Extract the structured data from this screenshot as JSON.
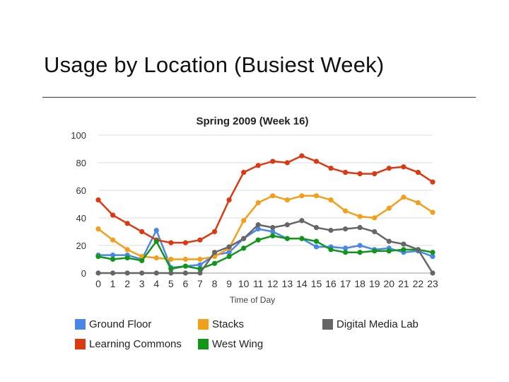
{
  "slide": {
    "title": "Usage by Location (Busiest Week)"
  },
  "chart_data": {
    "type": "line",
    "title": "Spring 2009 (Week 16)",
    "xlabel": "Time of Day",
    "ylabel": "",
    "x": [
      0,
      1,
      2,
      3,
      4,
      5,
      6,
      7,
      8,
      9,
      10,
      11,
      12,
      13,
      14,
      15,
      16,
      17,
      18,
      19,
      20,
      21,
      22,
      23
    ],
    "ylim": [
      0,
      100
    ],
    "yticks": [
      0,
      20,
      40,
      60,
      80,
      100
    ],
    "grid": true,
    "legend_position": "bottom",
    "series": [
      {
        "name": "Ground Floor",
        "color": "#4a86e8",
        "values": [
          13,
          13,
          13,
          10,
          31,
          4,
          5,
          6,
          13,
          15,
          25,
          32,
          30,
          25,
          25,
          19,
          19,
          18,
          20,
          17,
          18,
          15,
          16,
          12
        ]
      },
      {
        "name": "Learning Commons",
        "color": "#dc3912",
        "values": [
          53,
          42,
          36,
          30,
          24,
          22,
          22,
          24,
          30,
          53,
          73,
          78,
          81,
          80,
          85,
          81,
          76,
          73,
          72,
          72,
          76,
          77,
          73,
          66
        ]
      },
      {
        "name": "Stacks",
        "color": "#f49f1a",
        "values": [
          32,
          24,
          17,
          12,
          11,
          10,
          10,
          10,
          12,
          18,
          38,
          51,
          56,
          53,
          56,
          56,
          53,
          45,
          41,
          40,
          47,
          55,
          51,
          44
        ]
      },
      {
        "name": "West Wing",
        "color": "#109618",
        "values": [
          12,
          10,
          11,
          9,
          23,
          3,
          5,
          3,
          7,
          12,
          18,
          24,
          27,
          25,
          25,
          23,
          17,
          15,
          15,
          16,
          16,
          17,
          17,
          15
        ]
      },
      {
        "name": "Digital Media Lab",
        "color": "#666666",
        "values": [
          0,
          0,
          0,
          0,
          0,
          0,
          0,
          0,
          15,
          19,
          25,
          35,
          33,
          35,
          38,
          33,
          31,
          32,
          33,
          30,
          23,
          21,
          17,
          0
        ]
      }
    ]
  }
}
